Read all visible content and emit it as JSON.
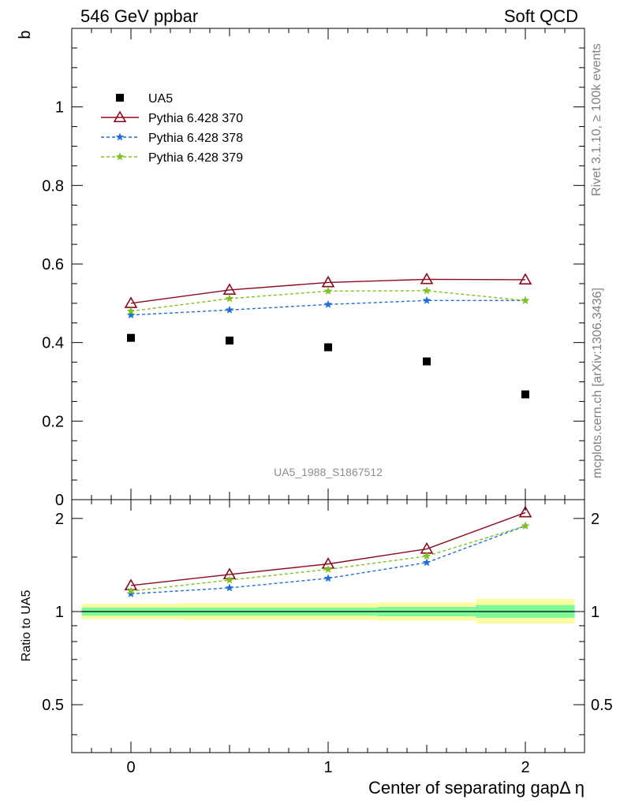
{
  "header": {
    "left": "546 GeV ppbar",
    "right": "Soft QCD"
  },
  "side_labels": {
    "rivet": "Rivet 3.1.10, ≥ 100k events",
    "mcplots": "mcplots.cern.ch [arXiv:1306.3436]"
  },
  "analysis_id": "UA5_1988_S1867512",
  "colors": {
    "ua5": "#000000",
    "p370": "#8b0a1f",
    "p378": "#1f6fd6",
    "p379": "#7ec21a",
    "band_inner": "#7dfa9a",
    "band_outer": "#fbfba0"
  },
  "chart_data": [
    {
      "type": "scatter",
      "panel": "main",
      "ylabel": "b",
      "xlim": [
        -0.3,
        2.3
      ],
      "ylim": [
        0,
        1.2
      ],
      "yticks": [
        0,
        0.2,
        0.4,
        0.6,
        0.8,
        1
      ],
      "ytick_labels": [
        "0",
        "0.2",
        "0.4",
        "0.6",
        "0.8",
        "1"
      ],
      "legend_position": "top-left",
      "x": [
        0,
        0.5,
        1,
        1.5,
        2
      ],
      "series": [
        {
          "name": "UA5",
          "marker": "square",
          "line": "none",
          "values": [
            0.412,
            0.405,
            0.388,
            0.352,
            0.268
          ]
        },
        {
          "name": "Pythia 6.428 370",
          "marker": "triangle-open",
          "line": "solid",
          "values": [
            0.5,
            0.534,
            0.553,
            0.561,
            0.56
          ]
        },
        {
          "name": "Pythia 6.428 378",
          "marker": "star",
          "line": "dashed",
          "values": [
            0.47,
            0.483,
            0.497,
            0.507,
            0.507
          ]
        },
        {
          "name": "Pythia 6.428 379",
          "marker": "star",
          "line": "dashed",
          "values": [
            0.48,
            0.512,
            0.531,
            0.532,
            0.507
          ]
        }
      ]
    },
    {
      "type": "line",
      "panel": "ratio",
      "ylabel": "Ratio to UA5",
      "xlabel": "Center of separating gapΔ η",
      "xlim": [
        -0.3,
        2.3
      ],
      "ylim": [
        0.35,
        2.3
      ],
      "yscale": "log",
      "xticks": [
        0,
        1,
        2
      ],
      "xtick_labels": [
        "0",
        "1",
        "2"
      ],
      "yticks": [
        0.5,
        1,
        2
      ],
      "ytick_labels": [
        "0.5",
        "1",
        "2"
      ],
      "x": [
        0,
        0.5,
        1,
        1.5,
        2
      ],
      "series": [
        {
          "name": "Pythia 6.428 370",
          "values": [
            1.214,
            1.318,
            1.425,
            1.594,
            2.089
          ]
        },
        {
          "name": "Pythia 6.428 378",
          "values": [
            1.141,
            1.193,
            1.281,
            1.44,
            1.892
          ]
        },
        {
          "name": "Pythia 6.428 379",
          "values": [
            1.165,
            1.264,
            1.369,
            1.511,
            1.892
          ]
        }
      ],
      "band": {
        "bin_edges": [
          -0.25,
          0.25,
          0.75,
          1.25,
          1.75,
          2.25
        ],
        "inner": [
          [
            0.97,
            1.03
          ],
          [
            0.97,
            1.03
          ],
          [
            0.97,
            1.03
          ],
          [
            0.965,
            1.035
          ],
          [
            0.955,
            1.05
          ]
        ],
        "outer": [
          [
            0.945,
            1.06
          ],
          [
            0.94,
            1.065
          ],
          [
            0.94,
            1.065
          ],
          [
            0.935,
            1.07
          ],
          [
            0.915,
            1.1
          ]
        ]
      }
    }
  ]
}
